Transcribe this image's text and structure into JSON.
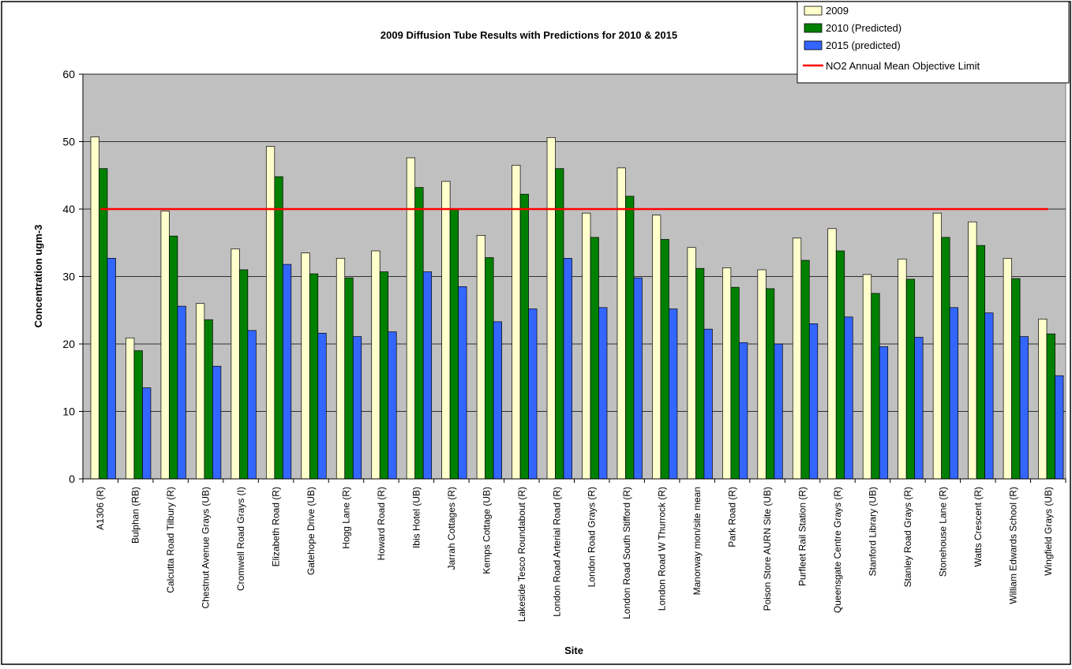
{
  "chart_data": {
    "type": "bar",
    "title": "2009 Diffusion Tube Results with Predictions for 2010 & 2015",
    "xlabel": "Site",
    "ylabel": "Concentration ugm-3",
    "ylim": [
      0,
      60
    ],
    "yticks": [
      0,
      10,
      20,
      30,
      40,
      50,
      60
    ],
    "grid": true,
    "legend_position": "top-right",
    "categories": [
      "A1306 (R)",
      "Bulphan (RB)",
      "Calcutta Road Tilbury (R)",
      "Chestnut Avenue Grays (UB)",
      "Cromwell Road Grays (I)",
      "Elizabeth Road (R)",
      "Gatehope Drive (UB)",
      "Hogg Lane (R)",
      "Howard Road (R)",
      "Ibis Hotel (UB)",
      "Jarrah Cottages (R)",
      "Kemps Cottage (UB)",
      "Lakeside Tesco Roundabout (R)",
      "London Road Arterial Road (R)",
      "London Road Grays (R)",
      "London Road South Stifford (R)",
      "London Road W Thurrock (R)",
      "Manorway mon/site mean",
      "Park Road (R)",
      "Poison Store AURN Site (UB)",
      "Purfleet Rail Station (R)",
      "Queensgate Centre Grays (R)",
      "Stanford Library (UB)",
      "Stanley Road Grays (R)",
      "Stonehouse Lane (R)",
      "Watts Crescent (R)",
      "William Edwards School (R)",
      "Wingfield Grays (UB)"
    ],
    "series": [
      {
        "name": "2009",
        "color": "#FFFFCC",
        "values": [
          50.7,
          20.9,
          39.7,
          26.0,
          34.1,
          49.3,
          33.5,
          32.7,
          33.8,
          47.6,
          44.1,
          36.1,
          46.5,
          50.6,
          39.4,
          46.1,
          39.1,
          34.3,
          31.3,
          31.0,
          35.7,
          37.1,
          30.3,
          32.6,
          39.4,
          38.1,
          32.7,
          23.7
        ]
      },
      {
        "name": "2010 (Predicted)",
        "color": "#008000",
        "values": [
          46.0,
          19.0,
          36.0,
          23.6,
          31.0,
          44.8,
          30.4,
          29.8,
          30.7,
          43.2,
          40.0,
          32.8,
          42.2,
          46.0,
          35.8,
          41.9,
          35.5,
          31.2,
          28.4,
          28.2,
          32.4,
          33.8,
          27.5,
          29.6,
          35.8,
          34.6,
          29.7,
          21.5
        ]
      },
      {
        "name": "2015 (predicted)",
        "color": "#3366FF",
        "values": [
          32.7,
          13.5,
          25.6,
          16.7,
          22.0,
          31.8,
          21.6,
          21.1,
          21.8,
          30.7,
          28.5,
          23.3,
          25.2,
          32.7,
          25.4,
          29.8,
          25.2,
          22.2,
          20.2,
          20.0,
          23.0,
          24.0,
          19.6,
          21.0,
          25.4,
          24.6,
          21.1,
          15.3
        ]
      }
    ],
    "limit_line": {
      "name": "NO2 Annual Mean Objective Limit",
      "value": 40,
      "color": "#FF0000"
    },
    "colors": {
      "plot_background": "#C0C0C0",
      "gridline": "#000000",
      "bar_outline": "#000000"
    }
  }
}
